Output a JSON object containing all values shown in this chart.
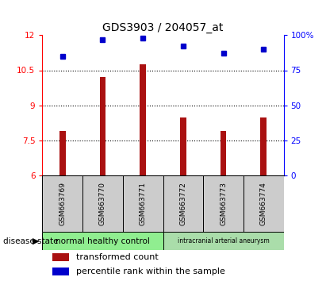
{
  "title": "GDS3903 / 204057_at",
  "samples": [
    "GSM663769",
    "GSM663770",
    "GSM663771",
    "GSM663772",
    "GSM663773",
    "GSM663774"
  ],
  "bar_values": [
    7.9,
    10.2,
    10.75,
    8.5,
    7.9,
    8.5
  ],
  "bar_color": "#aa1111",
  "percentile_values": [
    85,
    97,
    98,
    92,
    87,
    90
  ],
  "dot_color": "#0000cc",
  "ylim_left": [
    6,
    12
  ],
  "ylim_right": [
    0,
    100
  ],
  "yticks_left": [
    6,
    7.5,
    9,
    10.5,
    12
  ],
  "ytick_labels_left": [
    "6",
    "7.5",
    "9",
    "10.5",
    "12"
  ],
  "yticks_right": [
    0,
    25,
    50,
    75,
    100
  ],
  "ytick_labels_right": [
    "0",
    "25",
    "50",
    "75",
    "100%"
  ],
  "group1_samples": [
    0,
    1,
    2
  ],
  "group2_samples": [
    3,
    4,
    5
  ],
  "group1_label": "normal healthy control",
  "group2_label": "intracranial arterial aneurysm",
  "group1_color": "#90ee90",
  "group2_color": "#aaddaa",
  "disease_state_label": "disease state",
  "legend_bar_label": "transformed count",
  "legend_dot_label": "percentile rank within the sample",
  "sample_box_color": "#cccccc",
  "title_fontsize": 10,
  "tick_fontsize": 7.5,
  "sample_fontsize": 6.5,
  "group_fontsize": 7.5,
  "legend_fontsize": 8,
  "bar_width": 0.15
}
